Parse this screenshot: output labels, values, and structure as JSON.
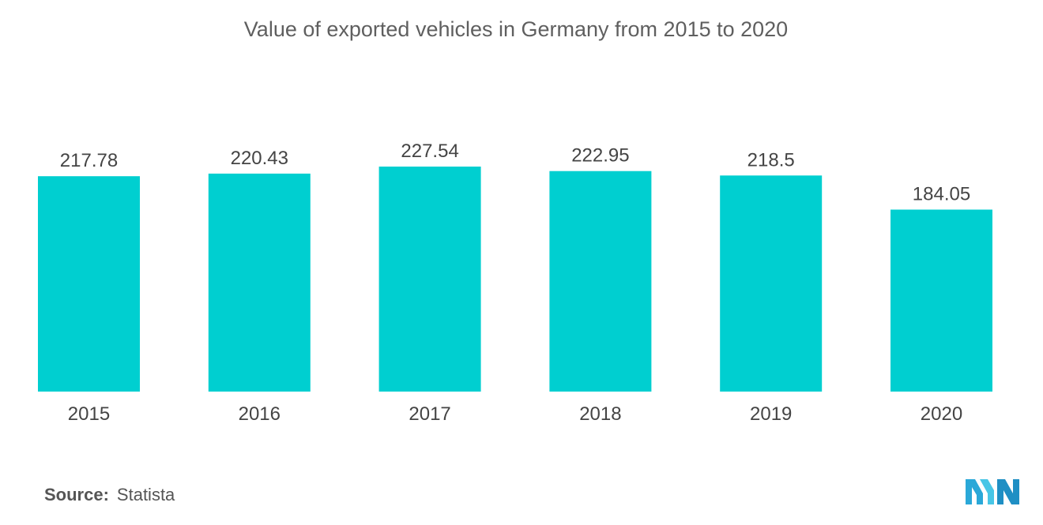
{
  "chart_data": {
    "type": "bar",
    "title": "Value of exported vehicles in Germany from 2015 to 2020",
    "categories": [
      "2015",
      "2016",
      "2017",
      "2018",
      "2019",
      "2020"
    ],
    "values": [
      217.78,
      220.43,
      227.54,
      222.95,
      218.5,
      184.05
    ],
    "value_labels": [
      "217.78",
      "220.43",
      "227.54",
      "222.95",
      "218.5",
      "184.05"
    ],
    "xlabel": "",
    "ylabel": "",
    "ylim": [
      0,
      227.54
    ],
    "grid": false,
    "legend": "none",
    "bar_color": "#00cfd0"
  },
  "source": {
    "label": "Source:",
    "value": "Statista"
  },
  "colors": {
    "title": "#5f5f5f",
    "labels": "#444444",
    "logo": "#2aa8d8"
  },
  "logo_icon": "mordor-intelligence-logo-icon"
}
